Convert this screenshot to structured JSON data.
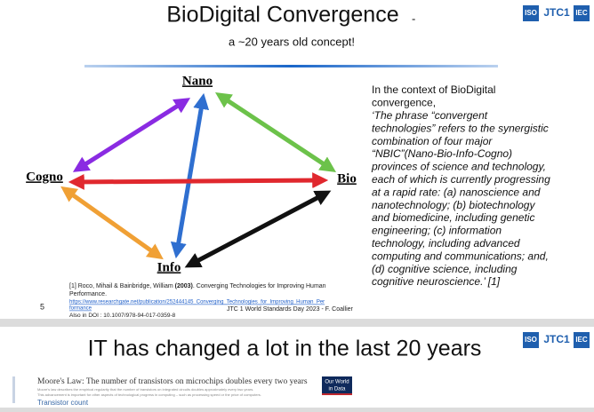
{
  "slide1": {
    "title": "BioDigital Convergence",
    "title_dash": "-",
    "subtitle": "a ~20 years old concept!",
    "logo": {
      "iso": "ISO",
      "jtc": "JTC1",
      "iec": "IEC"
    },
    "nodes": {
      "nano": "Nano",
      "cogno": "Cogno",
      "bio": "Bio",
      "info": "Info"
    },
    "intro_lines": [
      "In the context of BioDigital",
      "convergence,"
    ],
    "quote_lines": [
      "‘The phrase “convergent",
      "technologies” refers to the synergistic",
      "combination of four major",
      "“NBIC”(Nano-Bio-Info-Cogno)",
      "provinces of science and technology,",
      "each of which is currently progressing",
      "at a rapid rate: (a) nanoscience and",
      "nanotechnology; (b) biotechnology",
      "and biomedicine, including genetic",
      "engineering; (c) information",
      "technology, including advanced",
      "computing and communications; and,",
      "(d) cognitive science, including",
      "cognitive neuroscience.’ [1]"
    ],
    "footnote": {
      "ref_start": "[1] Roco, Mihail & Bainbridge, William ",
      "ref_year": "(2003)",
      "ref_end": ". Converging Technologies for Improving Human",
      "ref_line2": "Performance.",
      "link_line1": "https://www.researchgate.net/publication/252444145_Converging_Technologies_for_Improving_Human_Per",
      "link_line2": "formance",
      "doi_label": "Also in DOI : ",
      "doi": "10.1007/978-94-017-0359-8"
    },
    "page_number": "5",
    "footer": "JTC 1 World Standards Day 2023 - F. Coallier"
  },
  "slide2": {
    "title": "IT has changed a lot in the last 20 years",
    "logo": {
      "iso": "ISO",
      "jtc": "JTC1",
      "iec": "IEC"
    },
    "chart_title": "Moore's Law: The number of transistors on microchips doubles every two years",
    "chart_note_1": "Moore's law describes the empirical regularity that the number of transistors on integrated circuits doubles approximately every two years.",
    "chart_note_2": "This advancement is important for other aspects of technological progress in computing – such as processing speed or the price of computers.",
    "owid_1": "Our World",
    "owid_2": "in Data",
    "axis_label": "Transistor count"
  }
}
